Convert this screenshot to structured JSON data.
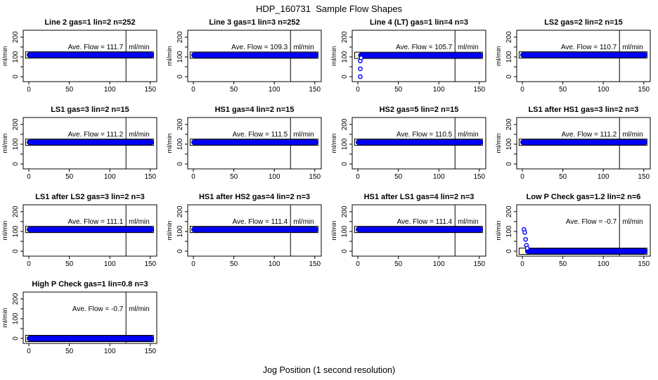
{
  "page": {
    "title": "HDP_160731  Sample Flow Shapes",
    "x_axis_caption": "Jog Position (1 second resolution)"
  },
  "chart_data": {
    "type": "scatter",
    "title": "HDP_160731  Sample Flow Shapes",
    "xlabel": "Jog Position (1 second resolution)",
    "ylabel": "ml/min",
    "x_ticks": [
      0,
      50,
      100,
      150
    ],
    "y_ticks": [
      0,
      50,
      100,
      150,
      200
    ],
    "y_tick_labels": [
      0,
      100,
      200
    ],
    "x_range": [
      -7,
      158
    ],
    "y_range": [
      -25,
      235
    ],
    "vline_x": 120,
    "point_color": "#0000ff",
    "band_edge_color": "#0000a0",
    "strip_color": "#ffffd8",
    "ann_label": "Ave. Flow =",
    "unit": "ml/min",
    "grid": "off",
    "panels": [
      {
        "title": "Line 2 gas=1 lin=2 n=252",
        "ave_flow": "111.7",
        "band_y": 110,
        "band_x": [
          0,
          152
        ],
        "lead_points": []
      },
      {
        "title": "Line 3 gas=1 lin=3 n=252",
        "ave_flow": "109.3",
        "band_y": 109,
        "band_x": [
          0,
          152
        ],
        "lead_points": []
      },
      {
        "title": "Line 4 (LT) gas=1 lin=4 n=3",
        "ave_flow": "105.7",
        "band_y": 108,
        "band_x": [
          3,
          152
        ],
        "lead_points": [
          [
            3,
            0
          ],
          [
            3,
            40
          ],
          [
            3,
            80
          ],
          [
            4,
            95
          ]
        ]
      },
      {
        "title": "LS2 gas=2 lin=2 n=15",
        "ave_flow": "110.7",
        "band_y": 110,
        "band_x": [
          0,
          152
        ],
        "lead_points": []
      },
      {
        "title": "LS1 gas=3 lin=2 n=15",
        "ave_flow": "111.2",
        "band_y": 110,
        "band_x": [
          0,
          152
        ],
        "lead_points": []
      },
      {
        "title": "HS1 gas=4 lin=2 n=15",
        "ave_flow": "111.5",
        "band_y": 110,
        "band_x": [
          0,
          152
        ],
        "lead_points": []
      },
      {
        "title": "HS2 gas=5 lin=2 n=15",
        "ave_flow": "110.5",
        "band_y": 110,
        "band_x": [
          0,
          152
        ],
        "lead_points": []
      },
      {
        "title": "LS1 after HS1 gas=3 lin=2 n=3",
        "ave_flow": "111.2",
        "band_y": 110,
        "band_x": [
          0,
          152
        ],
        "lead_points": []
      },
      {
        "title": "LS1 after LS2 gas=3 lin=2 n=3",
        "ave_flow": "111.1",
        "band_y": 110,
        "band_x": [
          0,
          152
        ],
        "lead_points": []
      },
      {
        "title": "HS1 after HS2 gas=4 lin=2 n=3",
        "ave_flow": "111.4",
        "band_y": 110,
        "band_x": [
          0,
          152
        ],
        "lead_points": []
      },
      {
        "title": "HS1 after LS1 gas=4 lin=2 n=3",
        "ave_flow": "111.4",
        "band_y": 110,
        "band_x": [
          0,
          152
        ],
        "lead_points": []
      },
      {
        "title": "Low P Check gas=1.2 lin=2 n=6",
        "ave_flow": "-0.7",
        "band_y": 0,
        "band_x": [
          6,
          152
        ],
        "lead_points": [
          [
            2,
            110
          ],
          [
            3,
            95
          ],
          [
            4,
            60
          ],
          [
            5,
            30
          ],
          [
            6,
            15
          ]
        ]
      },
      {
        "title": "High P Check gas=1 lin=0.8 n=3",
        "ave_flow": "-0.7",
        "band_y": 0,
        "band_x": [
          0,
          152
        ],
        "lead_points": []
      }
    ]
  }
}
